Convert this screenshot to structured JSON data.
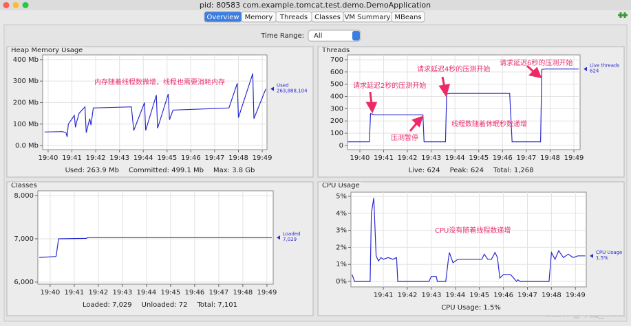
{
  "window": {
    "title": "pid: 80583 com.example.tomcat.test.demo.DemoApplication"
  },
  "tabs": [
    "Overview",
    "Memory",
    "Threads",
    "Classes",
    "VM Summary",
    "MBeans"
  ],
  "time_range": {
    "label": "Time Range:",
    "value": "All"
  },
  "watermark": "CSDN @半夏_2021",
  "chart_data": [
    {
      "type": "line",
      "title": "Heap Memory Usage",
      "grid": true,
      "xlim": [
        1179.77,
        1189.2
      ],
      "ylim": [
        -19,
        422
      ],
      "xticks": [
        {
          "value": 1180,
          "label": "19:40"
        },
        {
          "value": 1181,
          "label": "19:41"
        },
        {
          "value": 1182,
          "label": "19:42"
        },
        {
          "value": 1183,
          "label": "19:43"
        },
        {
          "value": 1184,
          "label": "19:44"
        },
        {
          "value": 1185,
          "label": "19:45"
        },
        {
          "value": 1186,
          "label": "19:46"
        },
        {
          "value": 1187,
          "label": "19:47"
        },
        {
          "value": 1188,
          "label": "19:48"
        },
        {
          "value": 1189,
          "label": "19:49"
        }
      ],
      "yticks": [
        {
          "value": 0,
          "label": "0.0 Mb"
        },
        {
          "value": 100,
          "label": "100 Mb"
        },
        {
          "value": 200,
          "label": "200 Mb"
        },
        {
          "value": 300,
          "label": "300 Mb"
        },
        {
          "value": 400,
          "label": "400 Mb"
        }
      ],
      "x": [
        1179.85,
        1180.6,
        1180.75,
        1180.8,
        1180.85,
        1181.1,
        1181.15,
        1181.2,
        1181.3,
        1181.55,
        1181.6,
        1181.75,
        1181.8,
        1181.9,
        1183.5,
        1183.6,
        1184.05,
        1184.1,
        1184.55,
        1184.6,
        1185.05,
        1185.1,
        1185.25,
        1187.6,
        1187.95,
        1188.0,
        1188.6,
        1188.65,
        1189.15
      ],
      "series": [
        {
          "name": "Used",
          "color": "#2a2ad0",
          "values": [
            63,
            65,
            60,
            40,
            100,
            140,
            85,
            110,
            150,
            180,
            60,
            125,
            95,
            175,
            180,
            70,
            200,
            70,
            235,
            80,
            240,
            120,
            165,
            175,
            290,
            130,
            335,
            125,
            263.888104
          ],
          "value_labels": [
            null,
            null,
            null,
            null,
            null,
            null,
            null,
            null,
            null,
            null,
            null,
            null,
            null,
            null,
            null,
            null,
            null,
            null,
            null,
            null,
            null,
            null,
            null,
            null,
            null,
            null,
            null,
            null,
            "263,888,104"
          ]
        }
      ],
      "footer": [
        "Used: 263.9 Mb",
        "Committed: 499.1 Mb",
        "Max: 3.8 Gb"
      ],
      "annotations": [
        "内存随着线程数微增，线程也需要消耗内存"
      ]
    },
    {
      "type": "line",
      "title": "Threads",
      "grid": true,
      "xlim": [
        1179.48,
        1189.26
      ],
      "ylim": [
        -34,
        739
      ],
      "xticks": [
        {
          "value": 1180,
          "label": "19:40"
        },
        {
          "value": 1181,
          "label": "19:41"
        },
        {
          "value": 1182,
          "label": "19:42"
        },
        {
          "value": 1183,
          "label": "19:43"
        },
        {
          "value": 1184,
          "label": "19:44"
        },
        {
          "value": 1185,
          "label": "19:45"
        },
        {
          "value": 1186,
          "label": "19:46"
        },
        {
          "value": 1187,
          "label": "19:47"
        },
        {
          "value": 1188,
          "label": "19:48"
        },
        {
          "value": 1189,
          "label": "19:49"
        }
      ],
      "yticks": [
        0,
        100,
        200,
        300,
        400,
        500,
        600,
        700
      ],
      "x": [
        1179.5,
        1180.4,
        1180.45,
        1180.6,
        1182.65,
        1182.7,
        1183.6,
        1183.65,
        1183.8,
        1186.3,
        1186.4,
        1187.6,
        1187.65,
        1187.8,
        1189.2
      ],
      "series": [
        {
          "name": "Live threads",
          "color": "#2a2ad0",
          "values": [
            30,
            30,
            260,
            250,
            250,
            30,
            30,
            420,
            425,
            425,
            30,
            30,
            620,
            624,
            624
          ]
        }
      ],
      "footer": [
        "Live: 624",
        "Peak: 624",
        "Total: 1,268"
      ],
      "annotations": [
        "请求延迟2秒的压测开始",
        "压测暂停",
        "请求延迟4秒的压测开始",
        "线程数随着休眠秒数递增",
        "请求延迟6秒的压测开始"
      ]
    },
    {
      "type": "line",
      "title": "Classes",
      "grid": true,
      "xlim": [
        1179.49,
        1189.26
      ],
      "ylim": [
        5952,
        8111
      ],
      "xticks": [
        {
          "value": 1180,
          "label": "19:40"
        },
        {
          "value": 1181,
          "label": "19:41"
        },
        {
          "value": 1182,
          "label": "19:42"
        },
        {
          "value": 1183,
          "label": "19:43"
        },
        {
          "value": 1184,
          "label": "19:44"
        },
        {
          "value": 1185,
          "label": "19:45"
        },
        {
          "value": 1186,
          "label": "19:46"
        },
        {
          "value": 1187,
          "label": "19:47"
        },
        {
          "value": 1188,
          "label": "19:48"
        },
        {
          "value": 1189,
          "label": "19:49"
        }
      ],
      "yticks": [
        {
          "value": 6000,
          "label": "6,000"
        },
        {
          "value": 7000,
          "label": "7,000"
        },
        {
          "value": 8000,
          "label": "8,000"
        }
      ],
      "x": [
        1179.55,
        1180.2,
        1180.25,
        1180.35,
        1181.5,
        1181.55,
        1189.2
      ],
      "series": [
        {
          "name": "Loaded",
          "color": "#2a2ad0",
          "values": [
            6570,
            6590,
            6600,
            7000,
            7010,
            7029,
            7029
          ],
          "value_labels": [
            null,
            null,
            null,
            null,
            null,
            null,
            "7,029"
          ]
        }
      ],
      "footer": [
        "Loaded: 7,029",
        "Unloaded: 72",
        "Total: 7,101"
      ],
      "annotations": []
    },
    {
      "type": "line",
      "title": "CPU Usage",
      "grid": true,
      "xlim": [
        1179.65,
        1189.45
      ],
      "ylim": [
        -0.32,
        5.24
      ],
      "xticks": [
        {
          "value": 1181,
          "label": "19:41"
        },
        {
          "value": 1182,
          "label": "19:42"
        },
        {
          "value": 1183,
          "label": "19:43"
        },
        {
          "value": 1184,
          "label": "19:44"
        },
        {
          "value": 1185,
          "label": "19:45"
        },
        {
          "value": 1186,
          "label": "19:46"
        },
        {
          "value": 1187,
          "label": "19:47"
        },
        {
          "value": 1188,
          "label": "19:48"
        },
        {
          "value": 1189,
          "label": "19:49"
        }
      ],
      "yticks": [
        {
          "value": 0,
          "label": "0%"
        },
        {
          "value": 1,
          "label": "1%"
        },
        {
          "value": 2,
          "label": "2%"
        },
        {
          "value": 3,
          "label": "3%"
        },
        {
          "value": 4,
          "label": "4%"
        },
        {
          "value": 5,
          "label": "5%"
        }
      ],
      "x": [
        1179.7,
        1179.8,
        1180.45,
        1180.5,
        1180.6,
        1180.7,
        1180.8,
        1180.9,
        1181.0,
        1181.2,
        1181.4,
        1181.55,
        1181.6,
        1182.9,
        1183.0,
        1183.2,
        1183.25,
        1183.6,
        1183.7,
        1183.75,
        1183.9,
        1184.1,
        1185.1,
        1185.2,
        1185.35,
        1185.5,
        1185.65,
        1185.75,
        1185.85,
        1186.0,
        1186.3,
        1186.55,
        1186.6,
        1186.7,
        1187.9,
        1188.0,
        1188.15,
        1188.3,
        1188.5,
        1188.7,
        1188.9,
        1189.1,
        1189.4
      ],
      "series": [
        {
          "name": "CPU Usage",
          "color": "#2a2ad0",
          "values": [
            0.4,
            0,
            0,
            4,
            4.9,
            1.5,
            1.2,
            1.4,
            1.3,
            1.4,
            1.3,
            1.4,
            0,
            0,
            0.3,
            0.3,
            0,
            0,
            1.2,
            1.7,
            1.1,
            1.3,
            1.3,
            1.6,
            1.3,
            1.3,
            1.7,
            1.4,
            0.2,
            0.4,
            0.4,
            0,
            0.1,
            0,
            0,
            1.7,
            1.3,
            1.8,
            1.4,
            1.6,
            1.4,
            1.5,
            1.5
          ],
          "value_labels": [
            null,
            null,
            null,
            null,
            null,
            null,
            null,
            null,
            null,
            null,
            null,
            null,
            null,
            null,
            null,
            null,
            null,
            null,
            null,
            null,
            null,
            null,
            null,
            null,
            null,
            null,
            null,
            null,
            null,
            null,
            null,
            null,
            null,
            null,
            null,
            null,
            null,
            null,
            null,
            null,
            null,
            null,
            "1.5%"
          ]
        }
      ],
      "footer": [
        "CPU Usage: 1.5%"
      ],
      "annotations": [
        "CPU没有随着线程数递增"
      ]
    }
  ]
}
